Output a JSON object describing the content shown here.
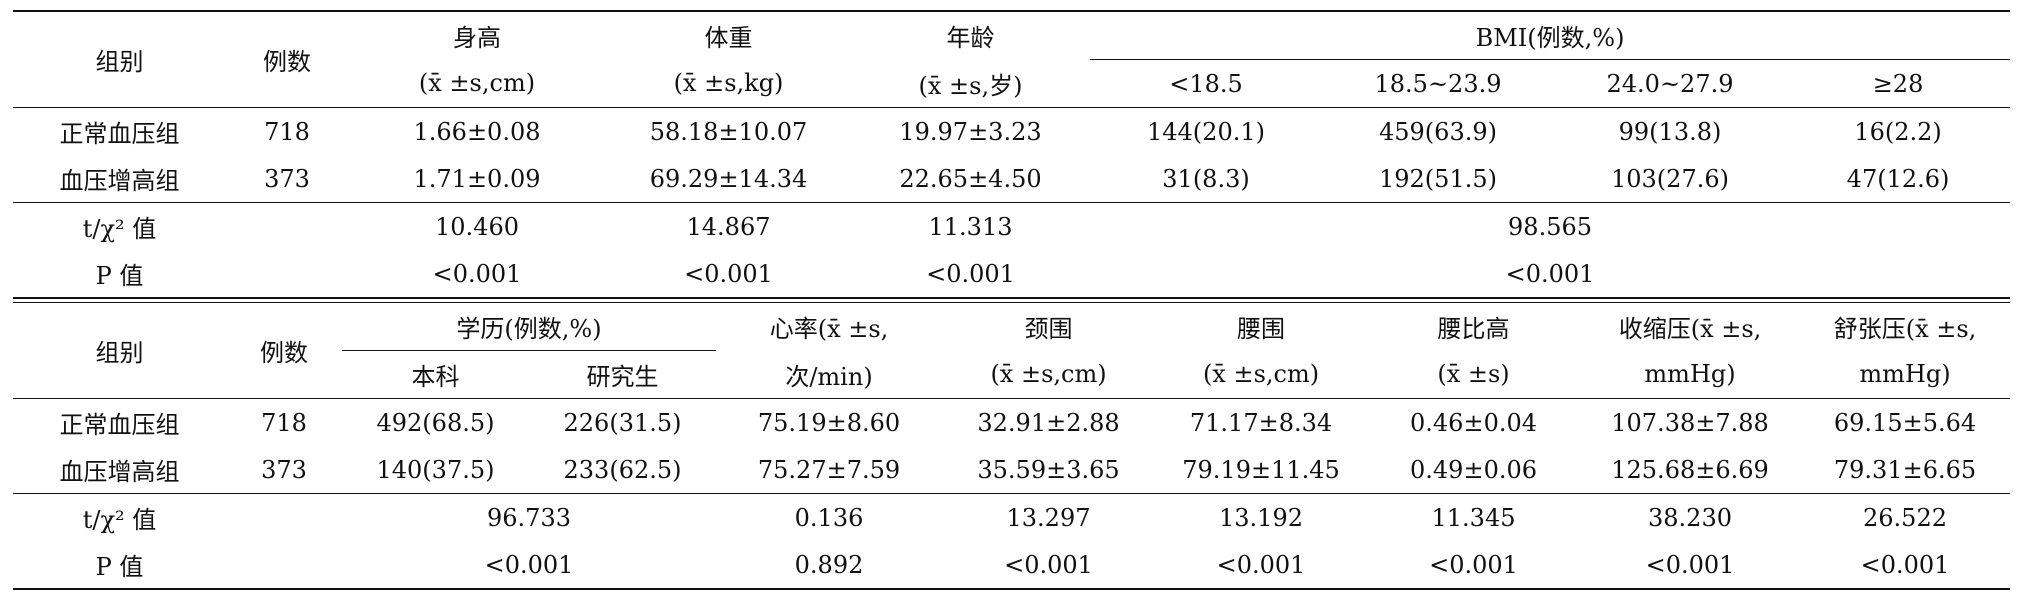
{
  "table1": {
    "header": {
      "group": "组别",
      "count": "例数",
      "height": "身高",
      "height_unit": "(x̄ ±s,cm)",
      "weight": "体重",
      "weight_unit": "(x̄ ±s,kg)",
      "age": "年龄",
      "age_unit": "(x̄ ±s,岁)",
      "bmi": "BMI(例数,%)",
      "bmi_groups": [
        "<18.5",
        "18.5~23.9",
        "24.0~27.9",
        "≥28"
      ]
    },
    "rows": [
      [
        "正常血压组",
        "718",
        "1.66±0.08",
        "58.18±10.07",
        "19.97±3.23",
        "144(20.1)",
        "459(63.9)",
        "99(13.8)",
        "16(2.2)"
      ],
      [
        "血压增高组",
        "373",
        "1.71±0.09",
        "69.29±14.34",
        "22.65±4.50",
        "31(8.3)",
        "192(51.5)",
        "103(27.6)",
        "47(12.6)"
      ]
    ],
    "stats": [
      [
        "t/χ² 值",
        "10.460",
        "14.867",
        "11.313",
        "98.565"
      ],
      [
        "P 值",
        "<0.001",
        "<0.001",
        "<0.001",
        "<0.001"
      ]
    ]
  },
  "table2": {
    "header": {
      "group": "组别",
      "count": "例数",
      "education": "学历(例数,%)",
      "education_groups": [
        "本科",
        "研究生"
      ],
      "heart_rate": "心率(x̄ ±s,",
      "heart_rate_unit": "次/min)",
      "neck": "颈围",
      "neck_unit": "(x̄ ±s,cm)",
      "waist": "腰围",
      "waist_unit": "(x̄ ±s,cm)",
      "whtr": "腰比高",
      "whtr_unit": "(x̄ ±s)",
      "sbp": "收缩压(x̄ ±s,",
      "sbp_unit": "mmHg)",
      "dbp": "舒张压(x̄ ±s,",
      "dbp_unit": "mmHg)"
    },
    "rows": [
      [
        "正常血压组",
        "718",
        "492(68.5)",
        "226(31.5)",
        "75.19±8.60",
        "32.91±2.88",
        "71.17±8.34",
        "0.46±0.04",
        "107.38±7.88",
        "69.15±5.64"
      ],
      [
        "血压增高组",
        "373",
        "140(37.5)",
        "233(62.5)",
        "75.27±7.59",
        "35.59±3.65",
        "79.19±11.45",
        "0.49±0.06",
        "125.68±6.69",
        "79.31±6.65"
      ]
    ],
    "stats": [
      [
        "t/χ² 值",
        "96.733",
        "0.136",
        "13.297",
        "13.192",
        "11.345",
        "38.230",
        "26.522"
      ],
      [
        "P 值",
        "<0.001",
        "0.892",
        "<0.001",
        "<0.001",
        "<0.001",
        "<0.001",
        "<0.001"
      ]
    ]
  }
}
